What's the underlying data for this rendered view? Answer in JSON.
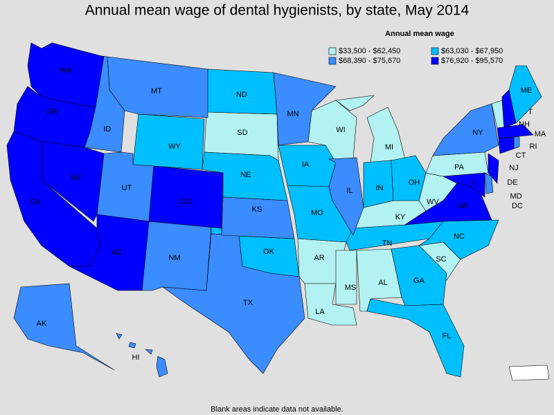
{
  "title": "Annual mean wage of dental hygienists, by state, May 2014",
  "legend_title": "Annual mean wage",
  "legend": [
    {
      "label": "$33,500 - $62,450",
      "color": "#b3f2f2",
      "states": [
        "SD",
        "WI",
        "MI",
        "KY",
        "WV",
        "PA",
        "AR",
        "LA",
        "MS",
        "AL",
        "SC",
        "VT"
      ]
    },
    {
      "label": "$63,030 - $67,950",
      "color": "#00bfff",
      "states": [
        "WY",
        "ND",
        "NE",
        "IA",
        "MO",
        "OK",
        "IN",
        "OH",
        "TN",
        "NC",
        "GA",
        "FL",
        "ME"
      ]
    },
    {
      "label": "$68,390 - $75,670",
      "color": "#3b8cff",
      "states": [
        "MT",
        "ID",
        "UT",
        "NM",
        "TX",
        "KS",
        "MN",
        "IL",
        "NY",
        "DE",
        "AK",
        "HI",
        "RI"
      ]
    },
    {
      "label": "$76,920 - $95,570",
      "color": "#0000ff",
      "states": [
        "WA",
        "OR",
        "CA",
        "NV",
        "AZ",
        "CO",
        "VA",
        "NJ",
        "MD",
        "DC",
        "NH",
        "MA",
        "CT"
      ]
    }
  ],
  "footnote": "Blank areas indicate data not available."
}
